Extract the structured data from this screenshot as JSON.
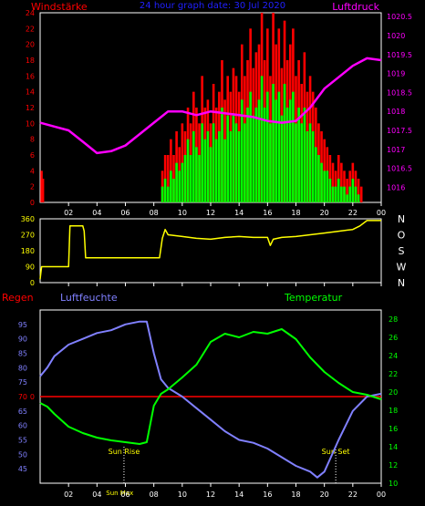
{
  "header": {
    "left_label": "Windstärke",
    "center_label": "24 hour graph date: 30 Jul 2020",
    "right_label": "Luftdruck"
  },
  "colors": {
    "red": "#ff0000",
    "green": "#00ff00",
    "magenta": "#ff00ff",
    "yellow": "#ffff00",
    "blue": "#8080ff",
    "axis": "#ffffff",
    "bg": "#000000",
    "title_blue": "#2020ff"
  },
  "x_ticks": [
    "02",
    "04",
    "06",
    "08",
    "10",
    "12",
    "14",
    "16",
    "18",
    "20",
    "22",
    "00"
  ],
  "compass": [
    "N",
    "W",
    "S",
    "O",
    "N"
  ],
  "bottom_labels": {
    "regen": "Regen",
    "luftfeuchte": "Luftfeuchte",
    "temperatur": "Temperatur",
    "sun_rise": "Sun Rise",
    "sun_set": "Sun Set",
    "sun_max": "Sun Max"
  },
  "chart_data": [
    {
      "type": "bar",
      "title": "Windstärke",
      "ylim": [
        0,
        24
      ],
      "yticks": [
        0,
        2,
        4,
        6,
        8,
        10,
        12,
        14,
        16,
        18,
        20,
        22,
        24
      ],
      "y2lim": [
        1015.6,
        1020.6
      ],
      "y2ticks": [
        "1016",
        "1016.5",
        "1017",
        "1017.5",
        "1018",
        "1018.5",
        "1019",
        "1019.5",
        "1020",
        "1020.5"
      ],
      "xlim": [
        0,
        24
      ],
      "series": [
        {
          "name": "Windstärke",
          "x": [
            0.1,
            0.2,
            8.6,
            8.8,
            9.0,
            9.2,
            9.4,
            9.6,
            9.8,
            10.0,
            10.2,
            10.4,
            10.6,
            10.8,
            11.0,
            11.2,
            11.4,
            11.6,
            11.8,
            12.0,
            12.2,
            12.4,
            12.6,
            12.8,
            13.0,
            13.2,
            13.4,
            13.6,
            13.8,
            14.0,
            14.2,
            14.4,
            14.6,
            14.8,
            15.0,
            15.2,
            15.4,
            15.6,
            15.8,
            16.0,
            16.2,
            16.4,
            16.6,
            16.8,
            17.0,
            17.2,
            17.4,
            17.6,
            17.8,
            18.0,
            18.2,
            18.4,
            18.6,
            18.8,
            19.0,
            19.2,
            19.4,
            19.6,
            19.8,
            20.0,
            20.2,
            20.4,
            20.6,
            20.8,
            21.0,
            21.2,
            21.4,
            21.6,
            21.8,
            22.0,
            22.2,
            22.4,
            22.6
          ],
          "gust": [
            4,
            3,
            4,
            6,
            6,
            8,
            6,
            9,
            7,
            10,
            9,
            12,
            10,
            14,
            12,
            10,
            16,
            12,
            13,
            10,
            15,
            12,
            14,
            18,
            13,
            16,
            14,
            17,
            16,
            14,
            20,
            16,
            18,
            22,
            17,
            19,
            20,
            24,
            18,
            22,
            16,
            24,
            20,
            22,
            17,
            23,
            18,
            20,
            22,
            16,
            18,
            15,
            19,
            14,
            16,
            14,
            12,
            10,
            9,
            8,
            7,
            6,
            5,
            4,
            6,
            5,
            4,
            3,
            4,
            5,
            4,
            3,
            2
          ],
          "avg": [
            0,
            0,
            2,
            3,
            2,
            4,
            3,
            5,
            4,
            5,
            6,
            8,
            6,
            9,
            7,
            6,
            10,
            8,
            9,
            7,
            10,
            8,
            9,
            12,
            8,
            11,
            9,
            11,
            10,
            9,
            13,
            10,
            12,
            14,
            11,
            12,
            13,
            16,
            12,
            14,
            10,
            15,
            13,
            14,
            11,
            15,
            12,
            13,
            14,
            10,
            12,
            10,
            12,
            9,
            10,
            9,
            7,
            6,
            5,
            4,
            4,
            3,
            2,
            2,
            3,
            2,
            2,
            1,
            2,
            3,
            2,
            1,
            0
          ]
        },
        {
          "name": "Luftdruck",
          "x": [
            0,
            1,
            2,
            3,
            4,
            5,
            6,
            7,
            8,
            9,
            10,
            11,
            12,
            13,
            14,
            15,
            16,
            17,
            18,
            19,
            20,
            21,
            22,
            23,
            24
          ],
          "values": [
            1017.7,
            1017.6,
            1017.5,
            1017.2,
            1016.9,
            1016.95,
            1017.1,
            1017.4,
            1017.7,
            1018.0,
            1018.0,
            1017.9,
            1018.0,
            1017.95,
            1017.9,
            1017.85,
            1017.75,
            1017.7,
            1017.75,
            1018.1,
            1018.6,
            1018.9,
            1019.2,
            1019.4,
            1019.35
          ]
        }
      ]
    },
    {
      "type": "line",
      "title": "Windrichtung",
      "ylim": [
        0,
        360
      ],
      "yticks": [
        "0",
        "90",
        "180",
        "270",
        "360"
      ],
      "xlim": [
        0,
        24
      ],
      "series": [
        {
          "name": "Windrichtung",
          "x": [
            0,
            0.1,
            2.0,
            2.1,
            2.2,
            3.0,
            3.1,
            3.2,
            4.0,
            6.0,
            8.0,
            8.4,
            8.6,
            8.8,
            9.0,
            10,
            11,
            12,
            13,
            14,
            15,
            16,
            16.2,
            16.4,
            17,
            18,
            19,
            20,
            21,
            22,
            22.5,
            23,
            24
          ],
          "values": [
            20,
            90,
            90,
            320,
            320,
            320,
            290,
            140,
            140,
            140,
            140,
            140,
            250,
            300,
            270,
            260,
            250,
            245,
            255,
            260,
            255,
            255,
            210,
            245,
            255,
            260,
            270,
            280,
            290,
            300,
            320,
            350,
            350
          ]
        }
      ]
    },
    {
      "type": "line",
      "title": "",
      "ylim": [
        40,
        100
      ],
      "yticks": [
        45,
        50,
        55,
        60,
        65,
        70,
        75,
        80,
        85,
        90,
        95
      ],
      "y2lim": [
        10,
        29
      ],
      "y2ticks": [
        10,
        12,
        14,
        16,
        18,
        20,
        22,
        24,
        26,
        28
      ],
      "xlim": [
        0,
        24
      ],
      "series": [
        {
          "name": "Luftfeuchte",
          "x": [
            0,
            0.5,
            1,
            2,
            3,
            4,
            5,
            6,
            7,
            7.5,
            8,
            8.5,
            9,
            10,
            11,
            12,
            13,
            14,
            15,
            16,
            17,
            18,
            19,
            19.5,
            20,
            21,
            22,
            23,
            24
          ],
          "values": [
            77,
            80,
            84,
            88,
            90,
            92,
            93,
            95,
            96,
            96,
            85,
            76,
            73,
            70,
            66,
            62,
            58,
            55,
            54,
            52,
            49,
            46,
            44,
            42,
            44,
            55,
            65,
            70,
            71
          ]
        },
        {
          "name": "Temperatur",
          "x": [
            0,
            0.5,
            1,
            2,
            3,
            4,
            5,
            6,
            7,
            7.5,
            8,
            8.5,
            9,
            10,
            11,
            12,
            13,
            14,
            15,
            16,
            17,
            18,
            19,
            20,
            21,
            22,
            23,
            24
          ],
          "values": [
            18.8,
            18.4,
            17.6,
            16.2,
            15.5,
            15.0,
            14.7,
            14.5,
            14.3,
            14.5,
            18.5,
            19.8,
            20.3,
            21.6,
            23.0,
            25.5,
            26.4,
            26.0,
            26.6,
            26.4,
            26.9,
            25.8,
            23.8,
            22.2,
            21.0,
            20.0,
            19.7,
            19.2
          ]
        },
        {
          "name": "Regen",
          "x": [
            0,
            24
          ],
          "values": [
            70,
            70
          ]
        }
      ]
    }
  ]
}
